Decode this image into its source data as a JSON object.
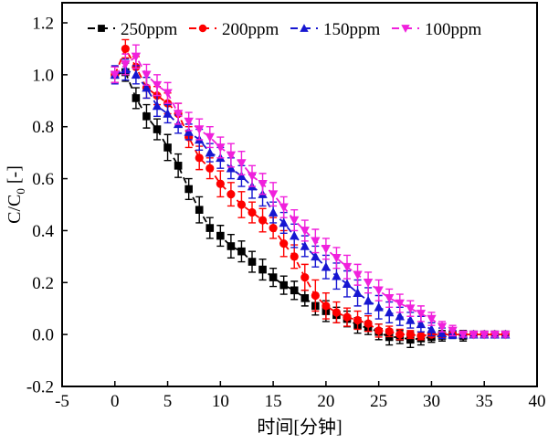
{
  "chart_data": {
    "type": "line",
    "title": "",
    "xlabel": "时间[分钟]",
    "ylabel": "C/C0 [-]",
    "ylabel_parts": {
      "pre": "C/C",
      "sub": "0",
      "post": " [-]"
    },
    "xlim": [
      -5,
      40
    ],
    "ylim": [
      -0.2,
      1.2
    ],
    "xticks": [
      -5,
      0,
      5,
      10,
      15,
      20,
      25,
      30,
      35,
      40
    ],
    "yticks": [
      -0.2,
      0.0,
      0.2,
      0.4,
      0.6,
      0.8,
      1.0,
      1.2
    ],
    "grid": false,
    "line_style": "dashed",
    "legend_position": "top-inside",
    "frame_color": "#000000",
    "x": [
      0,
      1,
      2,
      3,
      4,
      5,
      6,
      7,
      8,
      9,
      10,
      11,
      12,
      13,
      14,
      15,
      16,
      17,
      18,
      19,
      20,
      21,
      22,
      23,
      24,
      25,
      26,
      27,
      28,
      29,
      30,
      31,
      32,
      33,
      34,
      35,
      36,
      37
    ],
    "series": [
      {
        "name": "250ppm",
        "color": "#000000",
        "marker": "square",
        "values": [
          1.0,
          1.01,
          0.91,
          0.84,
          0.79,
          0.72,
          0.65,
          0.56,
          0.48,
          0.41,
          0.38,
          0.34,
          0.32,
          0.28,
          0.25,
          0.22,
          0.19,
          0.17,
          0.14,
          0.11,
          0.09,
          0.075,
          0.06,
          0.035,
          0.025,
          0.01,
          -0.01,
          -0.01,
          -0.02,
          -0.015,
          -0.01,
          -0.005,
          0.0,
          -0.005,
          0.0,
          0.0,
          0.0,
          0.0
        ],
        "errors": [
          0.03,
          0.035,
          0.04,
          0.045,
          0.04,
          0.05,
          0.045,
          0.04,
          0.05,
          0.04,
          0.04,
          0.045,
          0.04,
          0.04,
          0.04,
          0.035,
          0.035,
          0.035,
          0.03,
          0.035,
          0.04,
          0.03,
          0.03,
          0.03,
          0.025,
          0.03,
          0.03,
          0.025,
          0.03,
          0.025,
          0.02,
          0.02,
          0.015,
          0.02,
          0.01,
          0.01,
          0.01,
          0.01
        ]
      },
      {
        "name": "200ppm",
        "color": "#fe0000",
        "marker": "circle",
        "values": [
          1.0,
          1.1,
          1.03,
          0.95,
          0.92,
          0.89,
          0.85,
          0.76,
          0.68,
          0.64,
          0.58,
          0.54,
          0.5,
          0.47,
          0.44,
          0.41,
          0.35,
          0.3,
          0.22,
          0.15,
          0.11,
          0.085,
          0.067,
          0.055,
          0.042,
          0.015,
          0.012,
          0.0,
          0.0,
          -0.005,
          0.0,
          0.0,
          0.0,
          0.0,
          0.0,
          0.0,
          0.0,
          0.0
        ],
        "errors": [
          0.03,
          0.035,
          0.04,
          0.04,
          0.035,
          0.04,
          0.04,
          0.04,
          0.045,
          0.04,
          0.05,
          0.045,
          0.05,
          0.04,
          0.045,
          0.04,
          0.05,
          0.045,
          0.05,
          0.06,
          0.05,
          0.04,
          0.035,
          0.035,
          0.03,
          0.025,
          0.02,
          0.02,
          0.015,
          0.015,
          0.01,
          0.01,
          0.01,
          0.01,
          0.01,
          0.01,
          0.01,
          0.01
        ]
      },
      {
        "name": "150ppm",
        "color": "#1616d1",
        "marker": "triangle-up",
        "values": [
          1.0,
          1.02,
          1.0,
          0.95,
          0.88,
          0.85,
          0.81,
          0.78,
          0.75,
          0.7,
          0.68,
          0.64,
          0.61,
          0.57,
          0.54,
          0.47,
          0.43,
          0.38,
          0.34,
          0.3,
          0.26,
          0.225,
          0.195,
          0.16,
          0.13,
          0.105,
          0.085,
          0.07,
          0.055,
          0.04,
          0.02,
          0.005,
          0.0,
          0.0,
          0.0,
          0.0,
          0.0,
          0.0
        ],
        "errors": [
          0.035,
          0.04,
          0.035,
          0.04,
          0.04,
          0.035,
          0.035,
          0.03,
          0.04,
          0.035,
          0.04,
          0.04,
          0.04,
          0.045,
          0.045,
          0.04,
          0.04,
          0.045,
          0.04,
          0.04,
          0.045,
          0.05,
          0.05,
          0.05,
          0.05,
          0.045,
          0.04,
          0.035,
          0.03,
          0.03,
          0.025,
          0.02,
          0.015,
          0.01,
          0.01,
          0.01,
          0.01,
          0.01
        ]
      },
      {
        "name": "100ppm",
        "color": "#f020dc",
        "marker": "triangle-down",
        "values": [
          1.0,
          1.04,
          1.07,
          1.0,
          0.96,
          0.93,
          0.85,
          0.82,
          0.79,
          0.76,
          0.72,
          0.69,
          0.66,
          0.61,
          0.58,
          0.54,
          0.49,
          0.44,
          0.4,
          0.36,
          0.33,
          0.295,
          0.26,
          0.23,
          0.2,
          0.17,
          0.14,
          0.12,
          0.1,
          0.08,
          0.06,
          0.03,
          0.015,
          0.0,
          0.0,
          0.0,
          0.0,
          0.0
        ],
        "errors": [
          0.03,
          0.04,
          0.045,
          0.04,
          0.04,
          0.04,
          0.04,
          0.035,
          0.04,
          0.04,
          0.04,
          0.045,
          0.045,
          0.04,
          0.04,
          0.045,
          0.04,
          0.04,
          0.04,
          0.045,
          0.04,
          0.04,
          0.045,
          0.04,
          0.04,
          0.04,
          0.035,
          0.035,
          0.03,
          0.03,
          0.025,
          0.02,
          0.02,
          0.01,
          0.01,
          0.01,
          0.01,
          0.01
        ]
      }
    ],
    "legend": [
      {
        "label": "250ppm"
      },
      {
        "label": "200ppm"
      },
      {
        "label": "150ppm"
      },
      {
        "label": "100ppm"
      }
    ]
  }
}
